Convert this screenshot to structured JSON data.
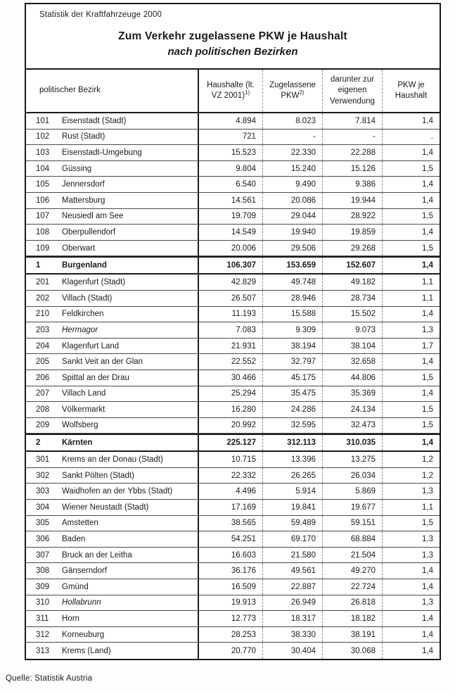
{
  "page": {
    "doc_label": "Statistik der Kraftfahrzeuge 2000",
    "title": "Zum Verkehr zugelassene PKW je Haushalt",
    "subtitle": "nach politischen Bezirken",
    "source": "Quelle: Statistik Austria"
  },
  "table": {
    "columns": [
      {
        "name": "politischer-bezirk",
        "lines": [
          "politischer Bezirk"
        ],
        "sup": ""
      },
      {
        "name": "haushalte",
        "lines": [
          "Haushalte (lt.",
          "VZ 2001)"
        ],
        "sup": "1)"
      },
      {
        "name": "zugelassene-pkw",
        "lines": [
          "Zugelassene",
          "PKW"
        ],
        "sup": "2)"
      },
      {
        "name": "eigene-verwendung",
        "lines": [
          "darunter zur",
          "eigenen",
          "Verwendung"
        ],
        "sup": ""
      },
      {
        "name": "pkw-je-haushalt",
        "lines": [
          "PKW je",
          "Haushalt"
        ],
        "sup": ""
      }
    ],
    "sections": [
      {
        "rows": [
          {
            "code": "101",
            "name": "Eisenstadt (Stadt)",
            "values": [
              "4.894",
              "8.023",
              "7.814",
              "1,4"
            ]
          },
          {
            "code": "102",
            "name": "Rust (Stadt)",
            "values": [
              "721",
              "-",
              "-",
              "."
            ]
          },
          {
            "code": "103",
            "name": "Eisenstadt-Umgebung",
            "values": [
              "15.523",
              "22.330",
              "22.288",
              "1,4"
            ]
          },
          {
            "code": "104",
            "name": "Güssing",
            "values": [
              "9.804",
              "15.240",
              "15.126",
              "1,5"
            ]
          },
          {
            "code": "105",
            "name": "Jennersdorf",
            "values": [
              "6.540",
              "9.490",
              "9.386",
              "1,4"
            ]
          },
          {
            "code": "106",
            "name": "Mattersburg",
            "values": [
              "14.561",
              "20.086",
              "19.944",
              "1,4"
            ]
          },
          {
            "code": "107",
            "name": "Neusiedl am See",
            "values": [
              "19.709",
              "29.044",
              "28.922",
              "1,5"
            ]
          },
          {
            "code": "108",
            "name": "Oberpullendorf",
            "values": [
              "14.549",
              "19.940",
              "19.859",
              "1,4"
            ]
          },
          {
            "code": "109",
            "name": "Oberwart",
            "values": [
              "20.006",
              "29.506",
              "29.268",
              "1,5"
            ]
          }
        ],
        "total": {
          "code": "1",
          "name": "Burgenland",
          "values": [
            "106.307",
            "153.659",
            "152.607",
            "1,4"
          ]
        }
      },
      {
        "rows": [
          {
            "code": "201",
            "name": "Klagenfurt (Stadt)",
            "values": [
              "42.829",
              "49.748",
              "49.182",
              "1,1"
            ]
          },
          {
            "code": "202",
            "name": "Villach (Stadt)",
            "values": [
              "26.507",
              "28.946",
              "28.734",
              "1,1"
            ]
          },
          {
            "code": "210",
            "name": "Feldkirchen",
            "values": [
              "11.193",
              "15.588",
              "15.502",
              "1,4"
            ]
          },
          {
            "code": "203",
            "name": "Hermagor",
            "italic": true,
            "values": [
              "7.083",
              "9.309",
              "9.073",
              "1,3"
            ]
          },
          {
            "code": "204",
            "name": "Klagenfurt Land",
            "values": [
              "21.931",
              "38.194",
              "38.104",
              "1,7"
            ]
          },
          {
            "code": "205",
            "name": "Sankt Veit an der Glan",
            "values": [
              "22.552",
              "32.797",
              "32.658",
              "1,4"
            ]
          },
          {
            "code": "206",
            "name": "Spittal an der Drau",
            "values": [
              "30.466",
              "45.175",
              "44.806",
              "1,5"
            ]
          },
          {
            "code": "207",
            "name": "Villach Land",
            "values": [
              "25.294",
              "35.475",
              "35.369",
              "1,4"
            ]
          },
          {
            "code": "208",
            "name": "Völkermarkt",
            "values": [
              "16.280",
              "24.286",
              "24.134",
              "1,5"
            ]
          },
          {
            "code": "209",
            "name": "Wolfsberg",
            "values": [
              "20.992",
              "32.595",
              "32.473",
              "1,5"
            ]
          }
        ],
        "total": {
          "code": "2",
          "name": "Kärnten",
          "values": [
            "225.127",
            "312.113",
            "310.035",
            "1,4"
          ]
        }
      },
      {
        "rows": [
          {
            "code": "301",
            "name": "Krems an der Donau (Stadt)",
            "values": [
              "10.715",
              "13.396",
              "13.275",
              "1,2"
            ]
          },
          {
            "code": "302",
            "name": "Sankt Pölten (Stadt)",
            "values": [
              "22.332",
              "26.265",
              "26.034",
              "1,2"
            ]
          },
          {
            "code": "303",
            "name": "Waidhofen an der Ybbs (Stadt)",
            "values": [
              "4.496",
              "5.914",
              "5.869",
              "1,3"
            ]
          },
          {
            "code": "304",
            "name": "Wiener Neustadt (Stadt)",
            "values": [
              "17.169",
              "19.841",
              "19.677",
              "1,1"
            ]
          },
          {
            "code": "305",
            "name": "Amstetten",
            "values": [
              "38.565",
              "59.489",
              "59.151",
              "1,5"
            ]
          },
          {
            "code": "306",
            "name": "Baden",
            "values": [
              "54.251",
              "69.170",
              "68.884",
              "1,3"
            ]
          },
          {
            "code": "307",
            "name": "Bruck an der Leitha",
            "values": [
              "16.603",
              "21.580",
              "21.504",
              "1,3"
            ]
          },
          {
            "code": "308",
            "name": "Gänserndorf",
            "values": [
              "36.176",
              "49.561",
              "49.270",
              "1,4"
            ]
          },
          {
            "code": "309",
            "name": "Gmünd",
            "values": [
              "16.509",
              "22.887",
              "22.724",
              "1,4"
            ]
          },
          {
            "code": "310",
            "name": "Hollabrunn",
            "italic": true,
            "values": [
              "19.913",
              "26.949",
              "26.818",
              "1,3"
            ]
          },
          {
            "code": "311",
            "name": "Horn",
            "values": [
              "12.773",
              "18.317",
              "18.182",
              "1,4"
            ]
          },
          {
            "code": "312",
            "name": "Korneuburg",
            "values": [
              "28.253",
              "38.330",
              "38.191",
              "1,4"
            ]
          },
          {
            "code": "313",
            "name": "Krems (Land)",
            "values": [
              "20.770",
              "30.404",
              "30.068",
              "1,4"
            ]
          }
        ],
        "total": null
      }
    ],
    "value_names": [
      "households-value",
      "registered-pkw-value",
      "own-use-value",
      "pkw-per-household-value"
    ]
  }
}
